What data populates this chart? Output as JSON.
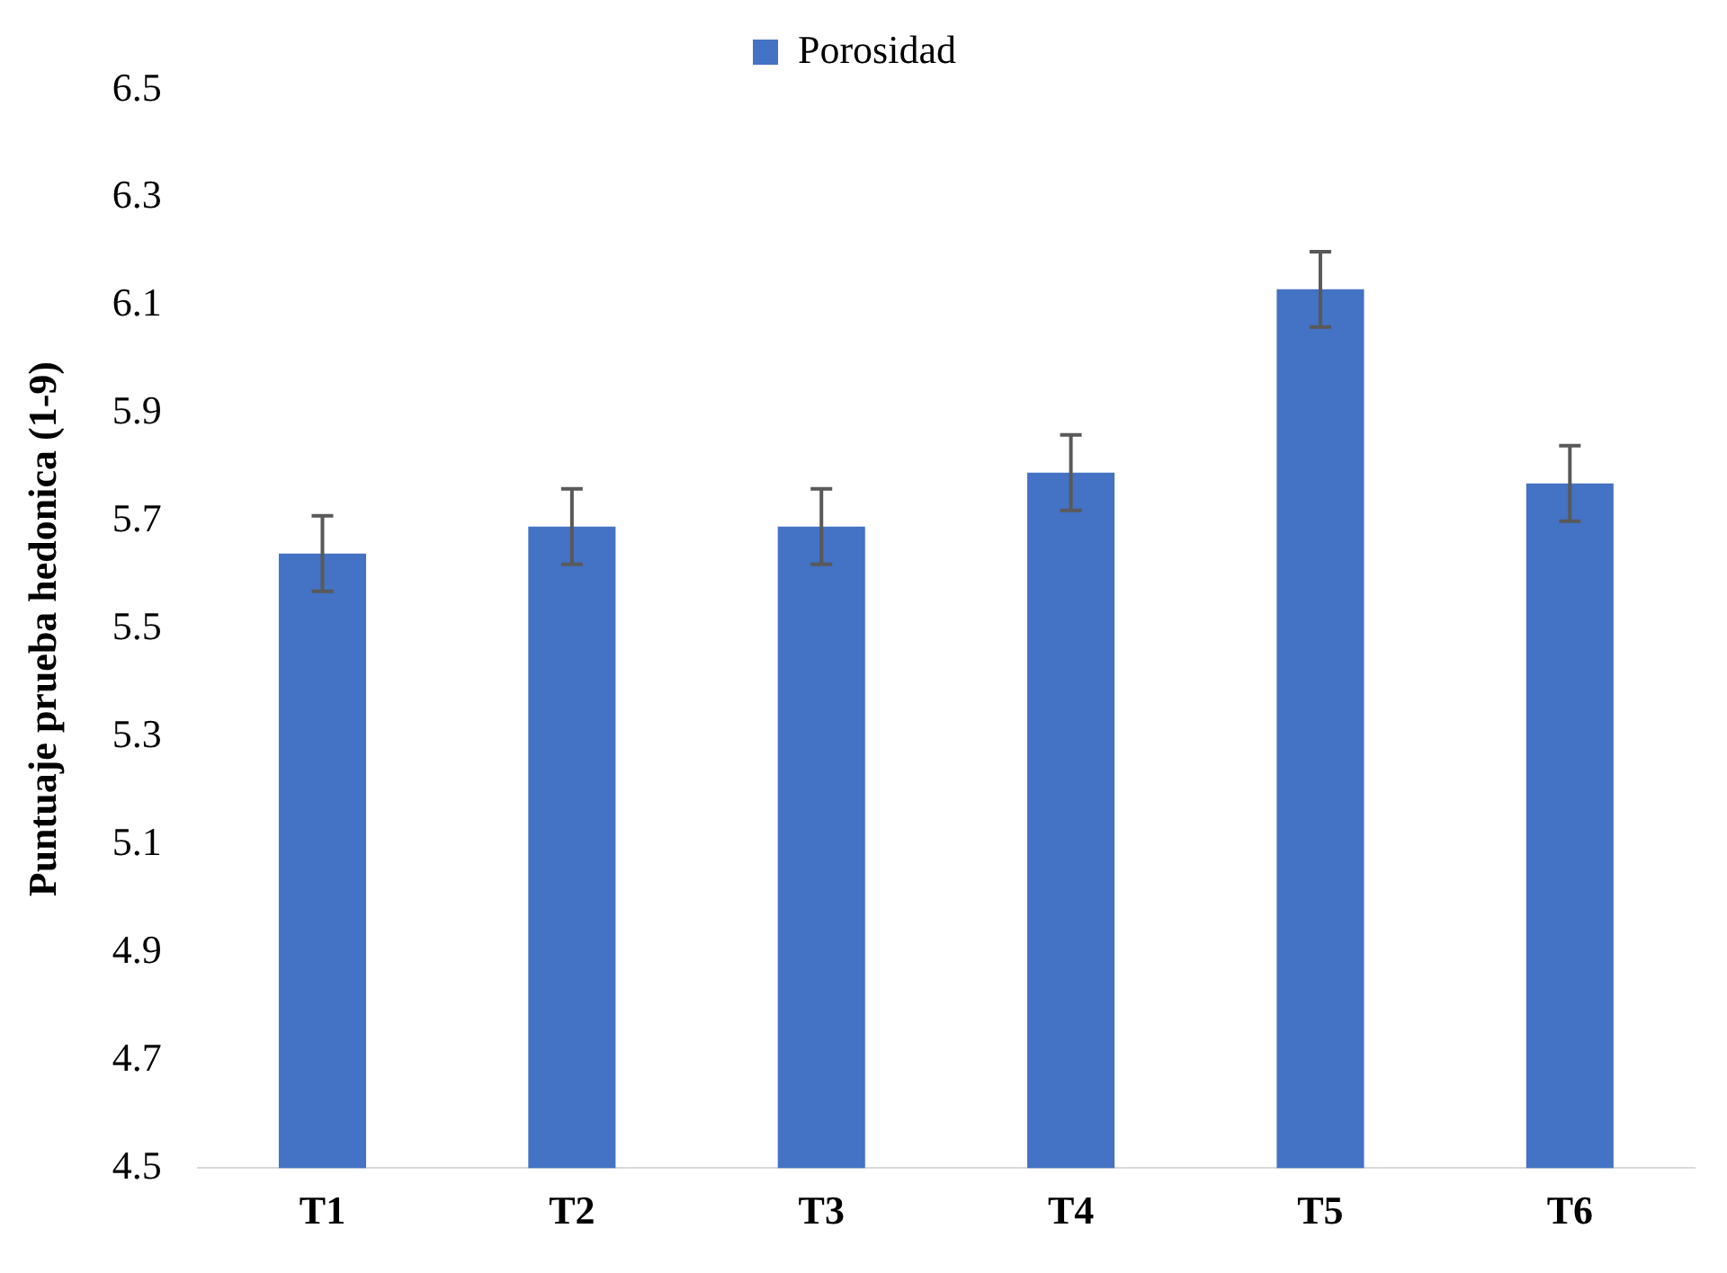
{
  "chart_data": {
    "type": "bar",
    "ylabel": "Puntuaje prueba hedonica (1-9)",
    "categories": [
      "T1",
      "T2",
      "T3",
      "T4",
      "T5",
      "T6"
    ],
    "series": [
      {
        "name": "Porosidad",
        "color": "#4472c4",
        "values": [
          5.64,
          5.69,
          5.69,
          5.79,
          6.13,
          5.77
        ],
        "errors": [
          0.07,
          0.07,
          0.07,
          0.07,
          0.07,
          0.07
        ]
      }
    ],
    "ylim": [
      4.5,
      6.5
    ],
    "yticks": [
      4.5,
      4.7,
      4.9,
      5.1,
      5.3,
      5.5,
      5.7,
      5.9,
      6.1,
      6.3,
      6.5
    ],
    "grid": false,
    "legend": "top"
  }
}
